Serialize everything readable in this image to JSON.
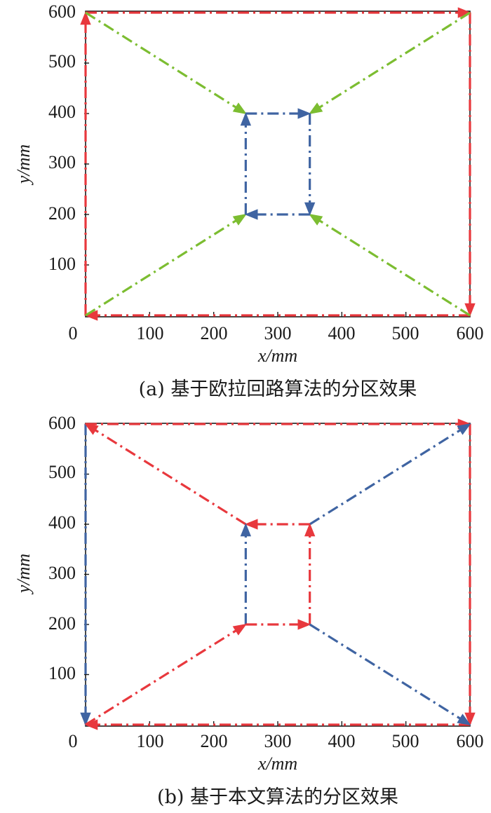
{
  "colors": {
    "red": "#e8383d",
    "green": "#7cbd31",
    "blue": "#3f64a2",
    "axis": "#1a1a1a"
  },
  "chart_data": [
    {
      "type": "line",
      "caption": "(a) 基于欧拉回路算法的分区效果",
      "xlabel": "x/mm",
      "ylabel": "y/mm",
      "xlim": [
        0,
        600
      ],
      "ylim": [
        0,
        600
      ],
      "xticks": [
        "0",
        "100",
        "200",
        "300",
        "400",
        "500",
        "600"
      ],
      "yticks": [
        "100",
        "200",
        "300",
        "400",
        "500",
        "600"
      ],
      "segments": [
        {
          "color": "red",
          "from": [
            600,
            0
          ],
          "to": [
            0,
            0
          ]
        },
        {
          "color": "red",
          "from": [
            0,
            0
          ],
          "to": [
            0,
            600
          ]
        },
        {
          "color": "red",
          "from": [
            0,
            600
          ],
          "to": [
            600,
            600
          ]
        },
        {
          "color": "red",
          "from": [
            600,
            600
          ],
          "to": [
            600,
            0
          ]
        },
        {
          "color": "green",
          "from": [
            0,
            600
          ],
          "to": [
            250,
            400
          ]
        },
        {
          "color": "green",
          "from": [
            600,
            600
          ],
          "to": [
            350,
            400
          ]
        },
        {
          "color": "green",
          "from": [
            0,
            0
          ],
          "to": [
            250,
            200
          ]
        },
        {
          "color": "green",
          "from": [
            600,
            0
          ],
          "to": [
            350,
            200
          ]
        },
        {
          "color": "blue",
          "from": [
            250,
            400
          ],
          "to": [
            350,
            400
          ]
        },
        {
          "color": "blue",
          "from": [
            350,
            400
          ],
          "to": [
            350,
            200
          ]
        },
        {
          "color": "blue",
          "from": [
            350,
            200
          ],
          "to": [
            250,
            200
          ]
        },
        {
          "color": "blue",
          "from": [
            250,
            200
          ],
          "to": [
            250,
            400
          ]
        }
      ]
    },
    {
      "type": "line",
      "caption": "(b) 基于本文算法的分区效果",
      "xlabel": "x/mm",
      "ylabel": "y/mm",
      "xlim": [
        0,
        600
      ],
      "ylim": [
        0,
        600
      ],
      "xticks": [
        "0",
        "100",
        "200",
        "300",
        "400",
        "500",
        "600"
      ],
      "yticks": [
        "100",
        "200",
        "300",
        "400",
        "500",
        "600"
      ],
      "segments": [
        {
          "color": "red",
          "from": [
            0,
            600
          ],
          "to": [
            600,
            600
          ]
        },
        {
          "color": "red",
          "from": [
            600,
            600
          ],
          "to": [
            600,
            0
          ]
        },
        {
          "color": "red",
          "from": [
            600,
            0
          ],
          "to": [
            0,
            0
          ]
        },
        {
          "color": "blue",
          "from": [
            0,
            600
          ],
          "to": [
            0,
            0
          ]
        },
        {
          "color": "red",
          "from": [
            250,
            400
          ],
          "to": [
            0,
            600
          ]
        },
        {
          "color": "red",
          "from": [
            350,
            400
          ],
          "to": [
            250,
            400
          ]
        },
        {
          "color": "blue",
          "from": [
            350,
            400
          ],
          "to": [
            600,
            600
          ]
        },
        {
          "color": "red",
          "from": [
            350,
            200
          ],
          "to": [
            350,
            400
          ]
        },
        {
          "color": "blue",
          "from": [
            250,
            200
          ],
          "to": [
            250,
            400
          ]
        },
        {
          "color": "red",
          "from": [
            250,
            200
          ],
          "to": [
            350,
            200
          ]
        },
        {
          "color": "red",
          "from": [
            0,
            0
          ],
          "to": [
            250,
            200
          ]
        },
        {
          "color": "blue",
          "from": [
            350,
            200
          ],
          "to": [
            600,
            0
          ]
        }
      ]
    }
  ]
}
